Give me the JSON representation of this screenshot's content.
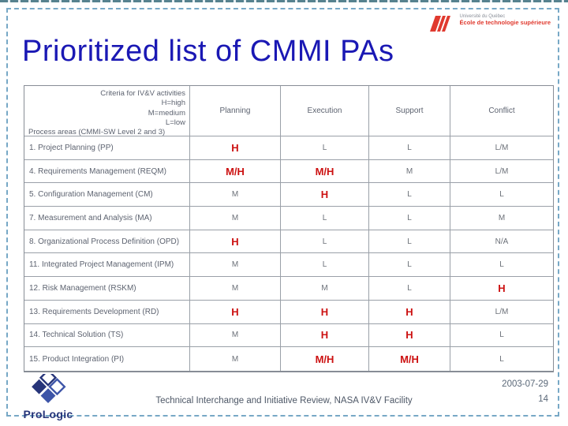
{
  "slide": {
    "title": "Prioritized list of CMMI PAs",
    "title_color": "#1a18b4"
  },
  "logo": {
    "university": "Université du Québec",
    "school": "École de technologie supérieure",
    "mark_color": "#e03a2f"
  },
  "table": {
    "criteria": {
      "lines": [
        "Criteria for IV&V activities",
        "H=high",
        "M=medium",
        "L=low"
      ],
      "bottom_line": "Process areas (CMMI-SW Level 2 and 3)"
    },
    "columns": [
      "Planning",
      "Execution",
      "Support",
      "Conflict"
    ],
    "rows": [
      {
        "label": "1. Project Planning (PP)",
        "values": [
          "H",
          "L",
          "L",
          "L/M"
        ]
      },
      {
        "label": "4. Requirements Management (REQM)",
        "values": [
          "M/H",
          "M/H",
          "M",
          "L/M"
        ]
      },
      {
        "label": "5. Configuration Management (CM)",
        "values": [
          "M",
          "H",
          "L",
          "L"
        ]
      },
      {
        "label": "7. Measurement and Analysis (MA)",
        "values": [
          "M",
          "L",
          "L",
          "M"
        ]
      },
      {
        "label": "8. Organizational Process Definition (OPD)",
        "values": [
          "H",
          "L",
          "L",
          "N/A"
        ]
      },
      {
        "label": "11. Integrated Project Management (IPM)",
        "values": [
          "M",
          "L",
          "L",
          "L"
        ]
      },
      {
        "label": "12. Risk Management (RSKM)",
        "values": [
          "M",
          "M",
          "L",
          "H"
        ]
      },
      {
        "label": "13. Requirements Development (RD)",
        "values": [
          "H",
          "H",
          "H",
          "L/M"
        ]
      },
      {
        "label": "14. Technical Solution (TS)",
        "values": [
          "M",
          "H",
          "H",
          "L"
        ]
      },
      {
        "label": "15. Product Integration (PI)",
        "values": [
          "M",
          "M/H",
          "M/H",
          "L"
        ]
      }
    ],
    "highlight_values": [
      "H",
      "M/H"
    ],
    "highlight_color": "#cc1111"
  },
  "footer": {
    "brand": "ProLogic",
    "center_text": "Technical Interchange and Initiative Review, NASA IV&V Facility",
    "date": "2003-07-29",
    "page_number": "14"
  }
}
